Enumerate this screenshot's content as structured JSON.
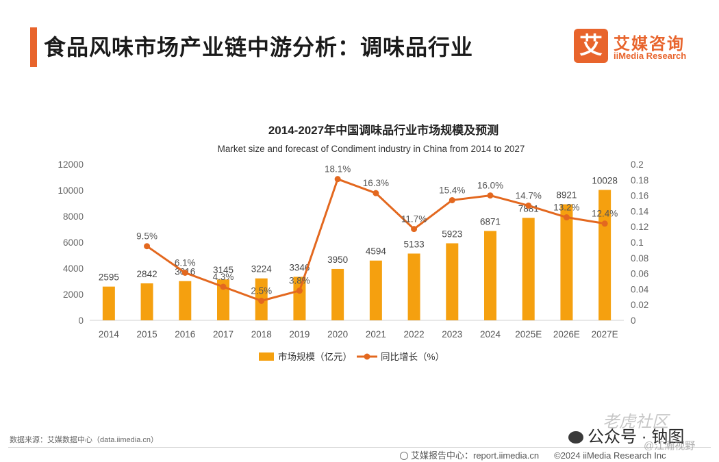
{
  "header": {
    "title": "食品风味市场产业链中游分析：调味品行业",
    "logo_mark": "艾",
    "logo_cn": "艾媒咨询",
    "logo_en": "iiMedia Research"
  },
  "chart_data": {
    "type": "bar+line",
    "title": "2014-2027年中国调味品行业市场规模及预测",
    "subtitle": "Market size and forecast of Condiment industry in China from 2014 to 2027",
    "categories": [
      "2014",
      "2015",
      "2016",
      "2017",
      "2018",
      "2019",
      "2020",
      "2021",
      "2022",
      "2023",
      "2024",
      "2025E",
      "2026E",
      "2027E"
    ],
    "series": [
      {
        "name": "市场规模（亿元）",
        "kind": "bar",
        "axis": "left",
        "values": [
          2595,
          2842,
          3016,
          3145,
          3224,
          3346,
          3950,
          4594,
          5133,
          5923,
          6871,
          7881,
          8921,
          10028
        ],
        "labels": [
          "2595",
          "2842",
          "3016",
          "3145",
          "3224",
          "3346",
          "3950",
          "4594",
          "5133",
          "5923",
          "6871",
          "7881",
          "8921",
          "10028"
        ]
      },
      {
        "name": "同比增长（%）",
        "kind": "line",
        "axis": "right",
        "values": [
          null,
          0.095,
          0.061,
          0.043,
          0.025,
          0.038,
          0.181,
          0.163,
          0.117,
          0.154,
          0.16,
          0.147,
          0.132,
          0.124
        ],
        "labels": [
          "",
          "9.5%",
          "6.1%",
          "4.3%",
          "2.5%",
          "3.8%",
          "18.1%",
          "16.3%",
          "11.7%",
          "15.4%",
          "16.0%",
          "14.7%",
          "13.2%",
          "12.4%"
        ]
      }
    ],
    "y_left": {
      "min": 0,
      "max": 12000,
      "ticks": [
        "0",
        "2000",
        "4000",
        "6000",
        "8000",
        "10000",
        "12000"
      ]
    },
    "y_right": {
      "min": 0,
      "max": 0.2,
      "ticks": [
        "0",
        "0.02",
        "0.04",
        "0.06",
        "0.08",
        "0.1",
        "0.12",
        "0.14",
        "0.16",
        "0.18",
        "0.2"
      ]
    },
    "grid": false,
    "legend_position": "bottom-center",
    "colors": {
      "bar": "#f5a00f",
      "line": "#e3681f"
    }
  },
  "footer": {
    "source": "数据来源：艾媒数据中心（data.iimedia.cn）",
    "report_center": "艾媒报告中心：report.iimedia.cn",
    "copyright": "©2024  iiMedia Research Inc"
  },
  "watermark": {
    "community": "老虎社区",
    "account": "公众号 · 钠图",
    "handle": "@江瀚视野"
  }
}
